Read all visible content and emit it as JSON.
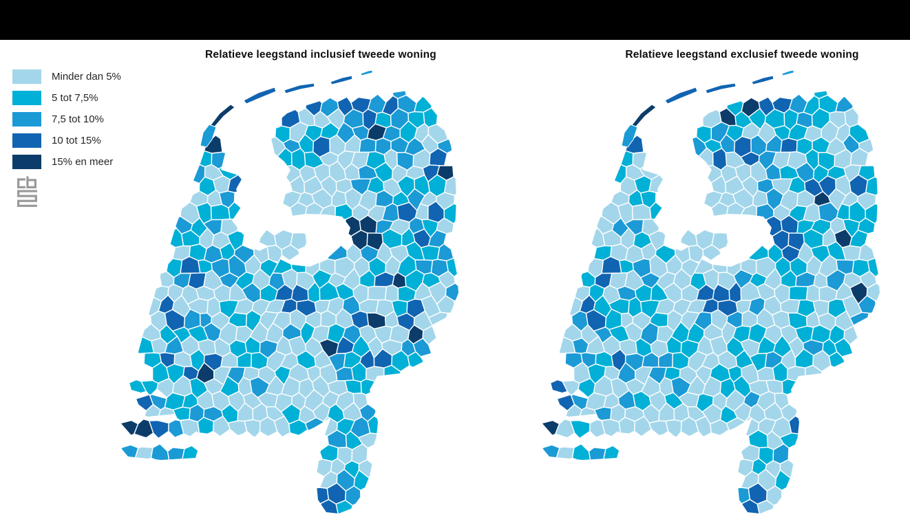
{
  "page": {
    "background": "#ffffff",
    "top_bar_color": "#000000"
  },
  "titles": {
    "left": "Relatieve leegstand inclusief tweede woning",
    "right": "Relatieve leegstand exclusief tweede woning"
  },
  "legend": {
    "items": [
      {
        "label": "Minder dan 5%",
        "color": "#a3d6ea"
      },
      {
        "label": "5 tot 7,5%",
        "color": "#00b0d6"
      },
      {
        "label": "7,5 tot 10%",
        "color": "#1b9ad6"
      },
      {
        "label": "10 tot 15%",
        "color": "#1164b1"
      },
      {
        "label": "15% en meer",
        "color": "#0c3c69"
      }
    ]
  },
  "logo": {
    "name": "cbs-logo",
    "color": "#9a9a9a"
  },
  "chart_data": {
    "type": "choropleth",
    "region": "Netherlands, municipalities",
    "classes": [
      "Minder dan 5%",
      "5 tot 7,5%",
      "7,5 tot 10%",
      "10 tot 15%",
      "15% en meer"
    ],
    "class_colors": [
      "#a3d6ea",
      "#00b0d6",
      "#1b9ad6",
      "#1164b1",
      "#0c3c69"
    ],
    "legend_position": "top-left",
    "maps": [
      {
        "title": "Relatieve leegstand inclusief tweede woning",
        "approx_class_share": [
          0.5,
          0.27,
          0.15,
          0.06,
          0.02
        ],
        "notable": "Wadden islands and Zeeland coast in highest classes; dark cells in Groningen, Friesland coast, Veluwe and Steenwijkerland area"
      },
      {
        "title": "Relatieve leegstand exclusief tweede woning",
        "approx_class_share": [
          0.58,
          0.26,
          0.12,
          0.035,
          0.005
        ],
        "notable": "Overall lighter than left map; Wadden islands remain dark, fewer 15%+ municipalities"
      }
    ]
  }
}
